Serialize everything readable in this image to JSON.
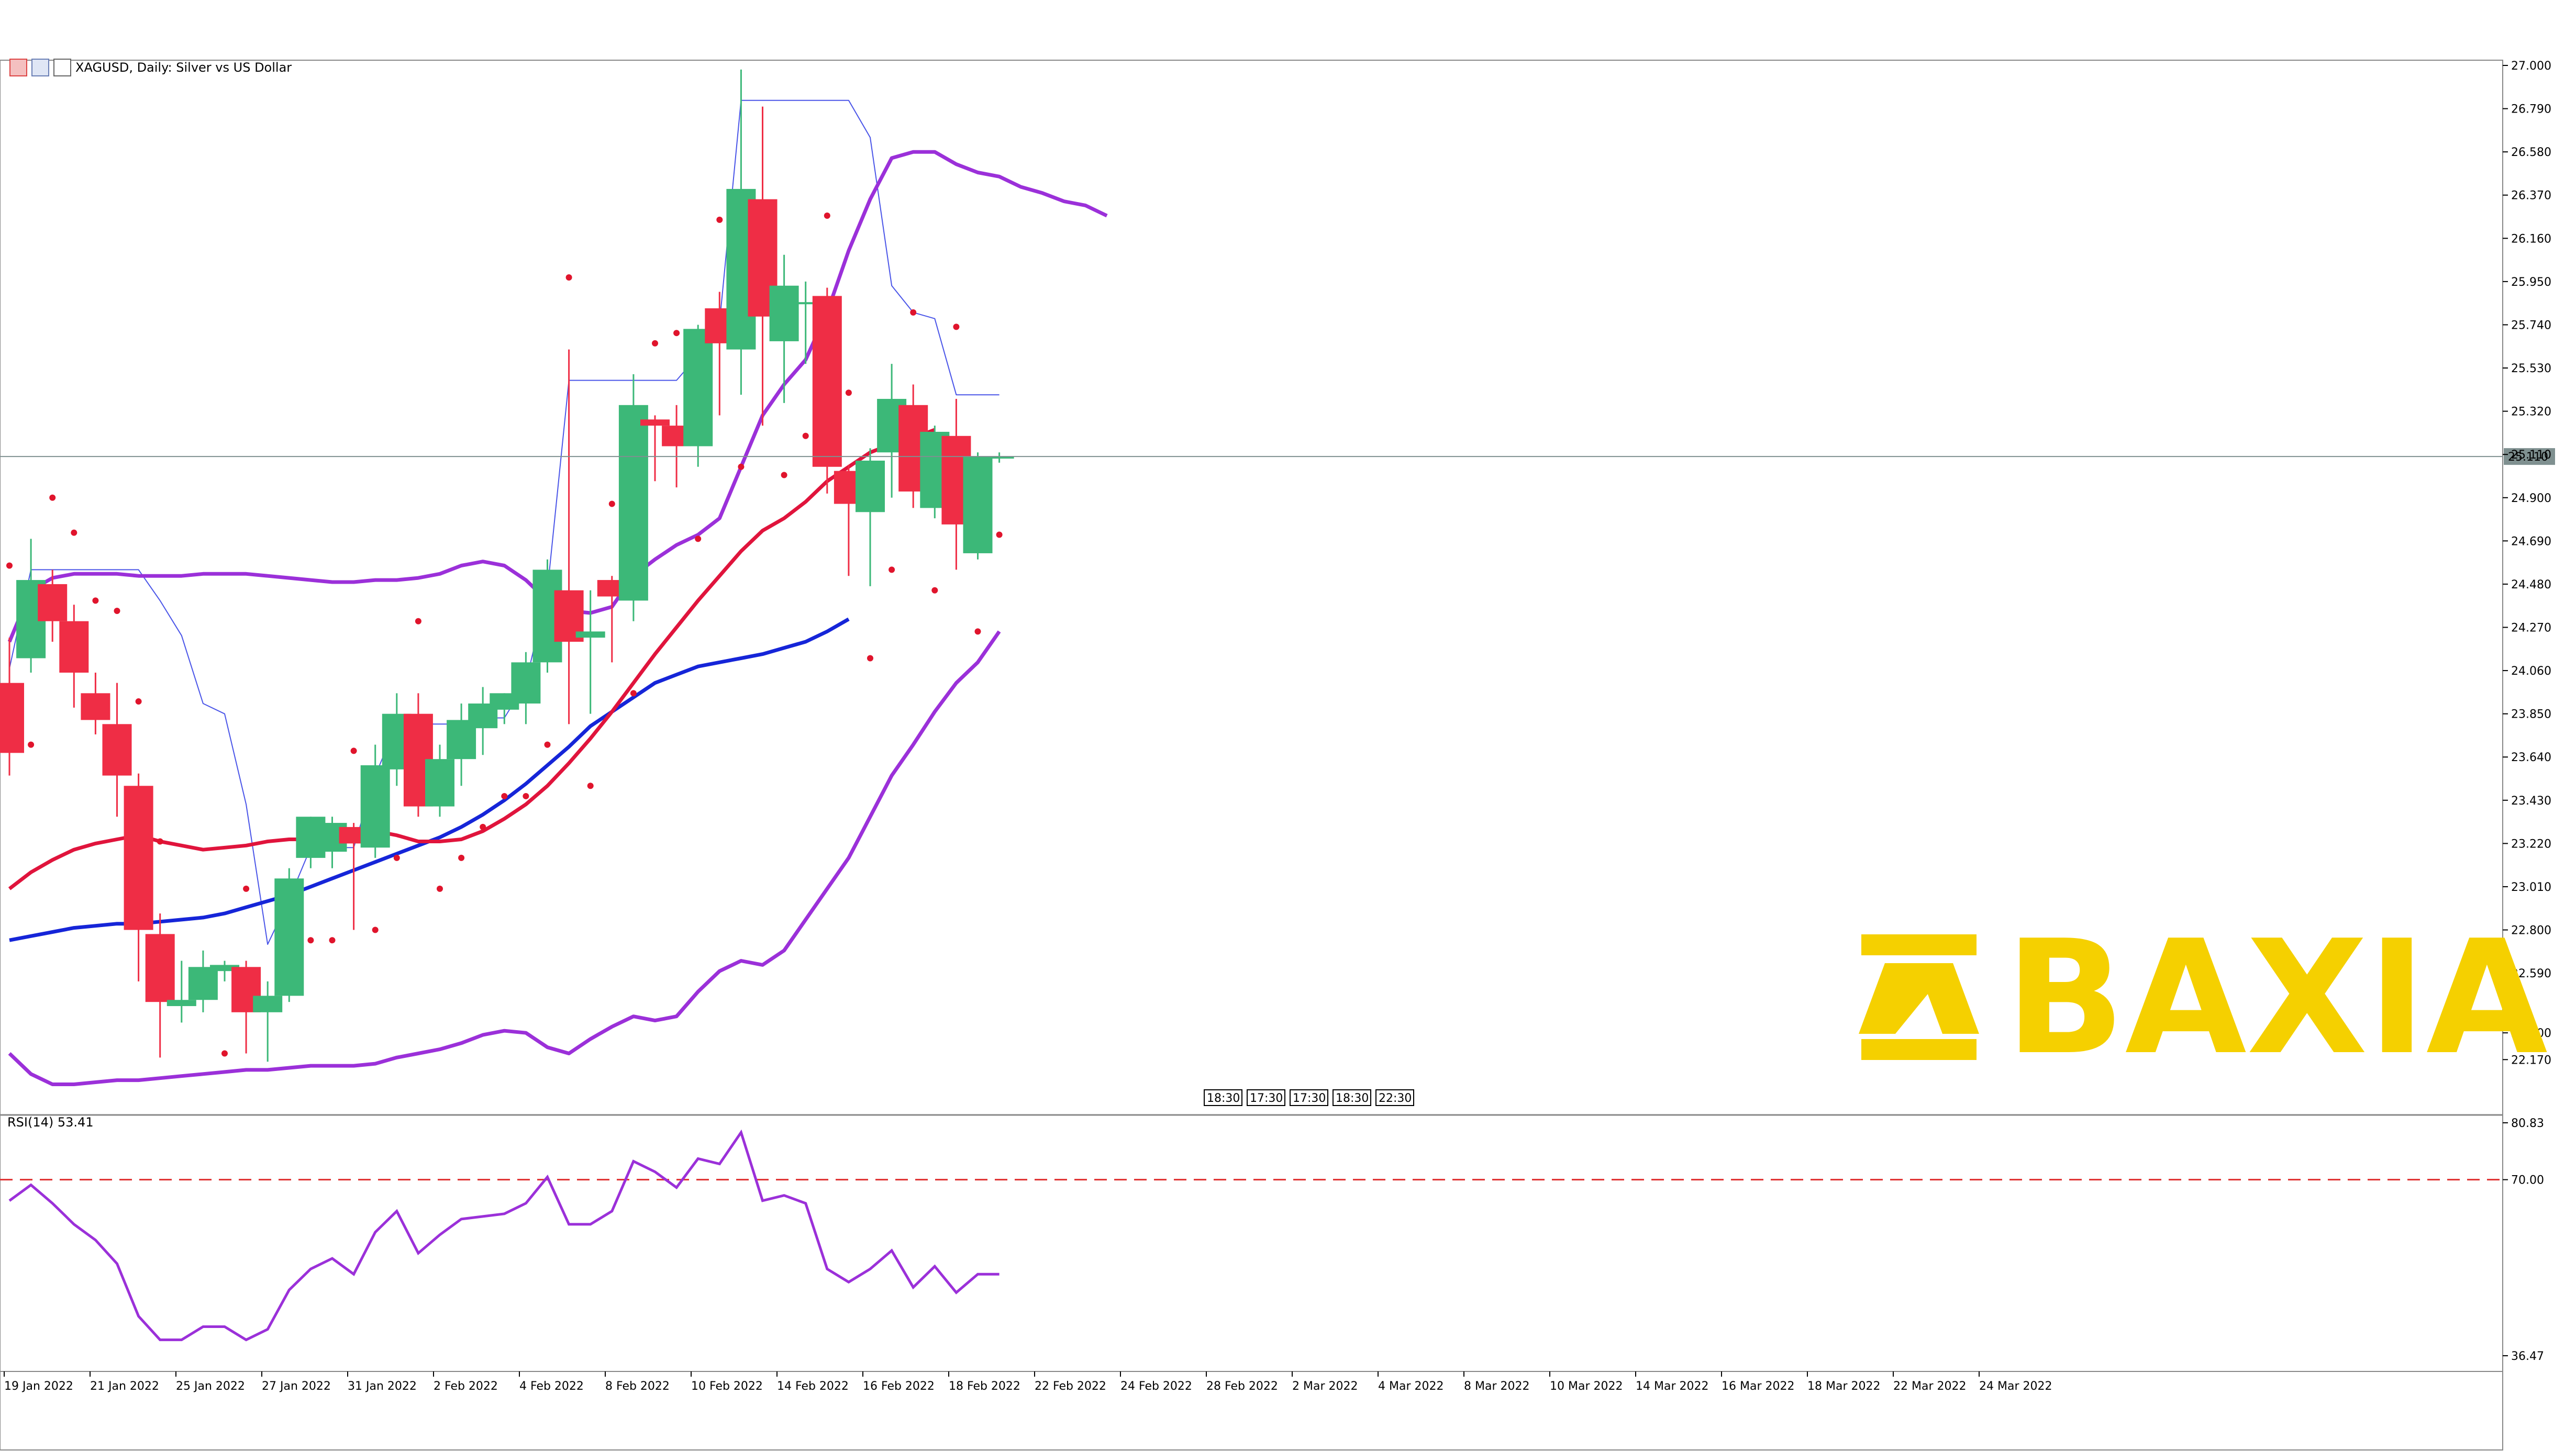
{
  "header": {
    "symbol": "XAGUSD",
    "description": "XAGUSD, Daily:  Silver vs US Dollar"
  },
  "brand": {
    "name": "BAXIA",
    "color": "#f5d000"
  },
  "rsi_label": "RSI(14) 53.41",
  "current_price_label": "25.110",
  "session_labels": [
    "18:30",
    "17:30",
    "17:30",
    "18:30",
    "22:30"
  ],
  "colors": {
    "bull": "#3cb878",
    "bear": "#ef2d45",
    "bollinger": "#9b30d9",
    "ma_fast": "#e0143c",
    "ma_slow": "#1525d8",
    "envelope": "#4a55e8",
    "psar": "#e0142c",
    "ichimoku_green": "#2a9a2a",
    "ichimoku_red": "#e02020",
    "rsi": "#9b30d9",
    "rsi_level": "#e03030"
  },
  "chart_data": [
    {
      "type": "candlestick",
      "title": "XAGUSD, Daily:  Silver vs US Dollar",
      "x_labels": [
        "19 Jan 2022",
        "21 Jan 2022",
        "25 Jan 2022",
        "27 Jan 2022",
        "31 Jan 2022",
        "2 Feb 2022",
        "4 Feb 2022",
        "8 Feb 2022",
        "10 Feb 2022",
        "14 Feb 2022",
        "16 Feb 2022",
        "18 Feb 2022",
        "22 Feb 2022",
        "24 Feb 2022",
        "28 Feb 2022",
        "2 Mar 2022",
        "4 Mar 2022",
        "8 Mar 2022",
        "10 Mar 2022",
        "14 Mar 2022",
        "16 Mar 2022",
        "18 Mar 2022",
        "22 Mar 2022",
        "24 Mar 2022"
      ],
      "y_ticks": [
        "27.000",
        "26.790",
        "26.580",
        "26.370",
        "26.160",
        "25.950",
        "25.740",
        "25.530",
        "25.320",
        "25.110",
        "24.900",
        "24.690",
        "24.480",
        "24.270",
        "24.060",
        "23.850",
        "23.640",
        "23.430",
        "23.220",
        "23.010",
        "22.800",
        "22.590",
        "22.300",
        "22.170"
      ],
      "ylim": [
        22.13,
        27.0
      ],
      "grid": false,
      "candles": [
        {
          "o": 24.0,
          "h": 24.22,
          "c": 23.66,
          "l": 23.55
        },
        {
          "o": 24.12,
          "h": 24.7,
          "c": 24.5,
          "l": 24.05
        },
        {
          "o": 24.48,
          "h": 24.55,
          "c": 24.3,
          "l": 24.2
        },
        {
          "o": 24.3,
          "h": 24.38,
          "c": 24.05,
          "l": 23.88
        },
        {
          "o": 23.95,
          "h": 24.05,
          "c": 23.82,
          "l": 23.75
        },
        {
          "o": 23.8,
          "h": 24.0,
          "c": 23.55,
          "l": 23.35
        },
        {
          "o": 23.5,
          "h": 23.56,
          "c": 22.8,
          "l": 22.55
        },
        {
          "o": 22.78,
          "h": 22.88,
          "c": 22.45,
          "l": 22.18
        },
        {
          "o": 22.43,
          "h": 22.65,
          "c": 22.46,
          "l": 22.35
        },
        {
          "o": 22.46,
          "h": 22.7,
          "c": 22.62,
          "l": 22.4
        },
        {
          "o": 22.6,
          "h": 22.65,
          "c": 22.63,
          "l": 22.55
        },
        {
          "o": 22.62,
          "h": 22.65,
          "c": 22.4,
          "l": 22.2
        },
        {
          "o": 22.4,
          "h": 22.55,
          "c": 22.48,
          "l": 22.16
        },
        {
          "o": 22.48,
          "h": 23.1,
          "c": 23.05,
          "l": 22.45
        },
        {
          "o": 23.15,
          "h": 23.35,
          "c": 23.35,
          "l": 23.1
        },
        {
          "o": 23.18,
          "h": 23.35,
          "c": 23.32,
          "l": 23.1
        },
        {
          "o": 23.3,
          "h": 23.32,
          "c": 23.22,
          "l": 22.8
        },
        {
          "o": 23.2,
          "h": 23.7,
          "c": 23.6,
          "l": 23.15
        },
        {
          "o": 23.58,
          "h": 23.95,
          "c": 23.85,
          "l": 23.5
        },
        {
          "o": 23.85,
          "h": 23.95,
          "c": 23.4,
          "l": 23.35
        },
        {
          "o": 23.4,
          "h": 23.7,
          "c": 23.63,
          "l": 23.35
        },
        {
          "o": 23.63,
          "h": 23.9,
          "c": 23.82,
          "l": 23.5
        },
        {
          "o": 23.78,
          "h": 23.98,
          "c": 23.9,
          "l": 23.65
        },
        {
          "o": 23.87,
          "h": 23.95,
          "c": 23.95,
          "l": 23.8
        },
        {
          "o": 23.9,
          "h": 24.15,
          "c": 24.1,
          "l": 23.8
        },
        {
          "o": 24.1,
          "h": 24.6,
          "c": 24.55,
          "l": 24.05
        },
        {
          "o": 24.45,
          "h": 25.62,
          "c": 24.2,
          "l": 23.8
        },
        {
          "o": 24.22,
          "h": 24.45,
          "c": 24.25,
          "l": 23.85
        },
        {
          "o": 24.5,
          "h": 24.52,
          "c": 24.42,
          "l": 24.1
        },
        {
          "o": 24.4,
          "h": 25.5,
          "c": 25.35,
          "l": 24.3
        },
        {
          "o": 25.28,
          "h": 25.3,
          "c": 25.25,
          "l": 24.98
        },
        {
          "o": 25.25,
          "h": 25.35,
          "c": 25.15,
          "l": 24.95
        },
        {
          "o": 25.15,
          "h": 25.74,
          "c": 25.72,
          "l": 25.05
        },
        {
          "o": 25.82,
          "h": 25.9,
          "c": 25.65,
          "l": 25.3
        },
        {
          "o": 25.62,
          "h": 26.98,
          "c": 26.4,
          "l": 25.4
        },
        {
          "o": 26.35,
          "h": 26.8,
          "c": 25.78,
          "l": 25.25
        },
        {
          "o": 25.66,
          "h": 26.08,
          "c": 25.93,
          "l": 25.36
        },
        {
          "o": 25.85,
          "h": 25.95,
          "c": 25.85,
          "l": 25.55
        },
        {
          "o": 25.88,
          "h": 25.92,
          "c": 25.05,
          "l": 24.92
        },
        {
          "o": 25.03,
          "h": 25.06,
          "c": 24.87,
          "l": 24.52
        },
        {
          "o": 24.83,
          "h": 25.14,
          "c": 25.08,
          "l": 24.47
        },
        {
          "o": 25.12,
          "h": 25.55,
          "c": 25.38,
          "l": 24.9
        },
        {
          "o": 25.35,
          "h": 25.45,
          "c": 24.93,
          "l": 24.85
        },
        {
          "o": 24.85,
          "h": 25.25,
          "c": 25.22,
          "l": 24.8
        },
        {
          "o": 25.2,
          "h": 25.38,
          "c": 24.77,
          "l": 24.55
        },
        {
          "o": 24.63,
          "h": 25.12,
          "c": 25.1,
          "l": 24.6
        },
        {
          "o": 25.09,
          "h": 25.12,
          "c": 25.1,
          "l": 25.07
        }
      ],
      "bollinger_upper": [
        24.2,
        24.45,
        24.51,
        24.53,
        24.53,
        24.53,
        24.52,
        24.52,
        24.52,
        24.53,
        24.53,
        24.53,
        24.52,
        24.51,
        24.5,
        24.49,
        24.49,
        24.5,
        24.5,
        24.51,
        24.53,
        24.57,
        24.59,
        24.57,
        24.5,
        24.4,
        24.35,
        24.34,
        24.37,
        24.52,
        24.6,
        24.67,
        24.72,
        24.8,
        25.05,
        25.3,
        25.45,
        25.57,
        25.8,
        26.1,
        26.35,
        26.55,
        26.58,
        26.58,
        26.52,
        26.48,
        26.46,
        26.41,
        26.38,
        26.34,
        26.32,
        26.27
      ],
      "bollinger_lower": [
        22.2,
        22.1,
        22.05,
        22.05,
        22.06,
        22.07,
        22.07,
        22.08,
        22.09,
        22.1,
        22.11,
        22.12,
        22.12,
        22.13,
        22.14,
        22.14,
        22.14,
        22.15,
        22.18,
        22.2,
        22.22,
        22.25,
        22.29,
        22.31,
        22.3,
        22.23,
        22.2,
        22.27,
        22.33,
        22.38,
        22.36,
        22.38,
        22.5,
        22.6,
        22.65,
        22.63,
        22.7,
        22.85,
        23.0,
        23.15,
        23.35,
        23.55,
        23.7,
        23.86,
        24.0,
        24.1,
        24.25
      ],
      "ma_fast": [
        23.0,
        23.08,
        23.14,
        23.19,
        23.22,
        23.24,
        23.26,
        23.23,
        23.21,
        23.19,
        23.2,
        23.21,
        23.23,
        23.24,
        23.24,
        23.27,
        23.29,
        23.28,
        23.26,
        23.23,
        23.23,
        23.24,
        23.28,
        23.34,
        23.41,
        23.5,
        23.61,
        23.73,
        23.86,
        24.0,
        24.14,
        24.27,
        24.4,
        24.52,
        24.64,
        24.74,
        24.8,
        24.88,
        24.98,
        25.05,
        25.12,
        25.16,
        25.19,
        25.23
      ],
      "ma_slow": [
        22.75,
        22.77,
        22.79,
        22.81,
        22.82,
        22.83,
        22.83,
        22.84,
        22.85,
        22.86,
        22.88,
        22.91,
        22.94,
        22.97,
        23.01,
        23.05,
        23.09,
        23.13,
        23.17,
        23.21,
        23.25,
        23.3,
        23.36,
        23.43,
        23.51,
        23.6,
        23.69,
        23.79,
        23.86,
        23.93,
        24.0,
        24.04,
        24.08,
        24.1,
        24.12,
        24.14,
        24.17,
        24.2,
        24.25,
        24.31
      ],
      "rsi": {
        "label": "RSI(14) 53.41",
        "ylim": [
          36.47,
          80.83
        ],
        "y_ticks": [
          "80.83",
          "70.00",
          "36.47"
        ],
        "level": 70.0,
        "values": [
          66.0,
          69.0,
          65.5,
          61.5,
          58.5,
          54.0,
          44.0,
          39.5,
          39.5,
          42.0,
          42.0,
          39.5,
          41.5,
          49.0,
          53.0,
          55.0,
          52.0,
          60.0,
          64.0,
          56.0,
          59.5,
          62.5,
          63.0,
          63.5,
          65.5,
          70.5,
          61.5,
          61.5,
          64.0,
          73.5,
          71.5,
          68.5,
          74.0,
          73.0,
          79.0,
          66.0,
          67.0,
          65.5,
          53.0,
          50.5,
          53.0,
          56.5,
          49.5,
          53.5,
          48.5,
          52.0,
          52.0
        ]
      }
    }
  ]
}
